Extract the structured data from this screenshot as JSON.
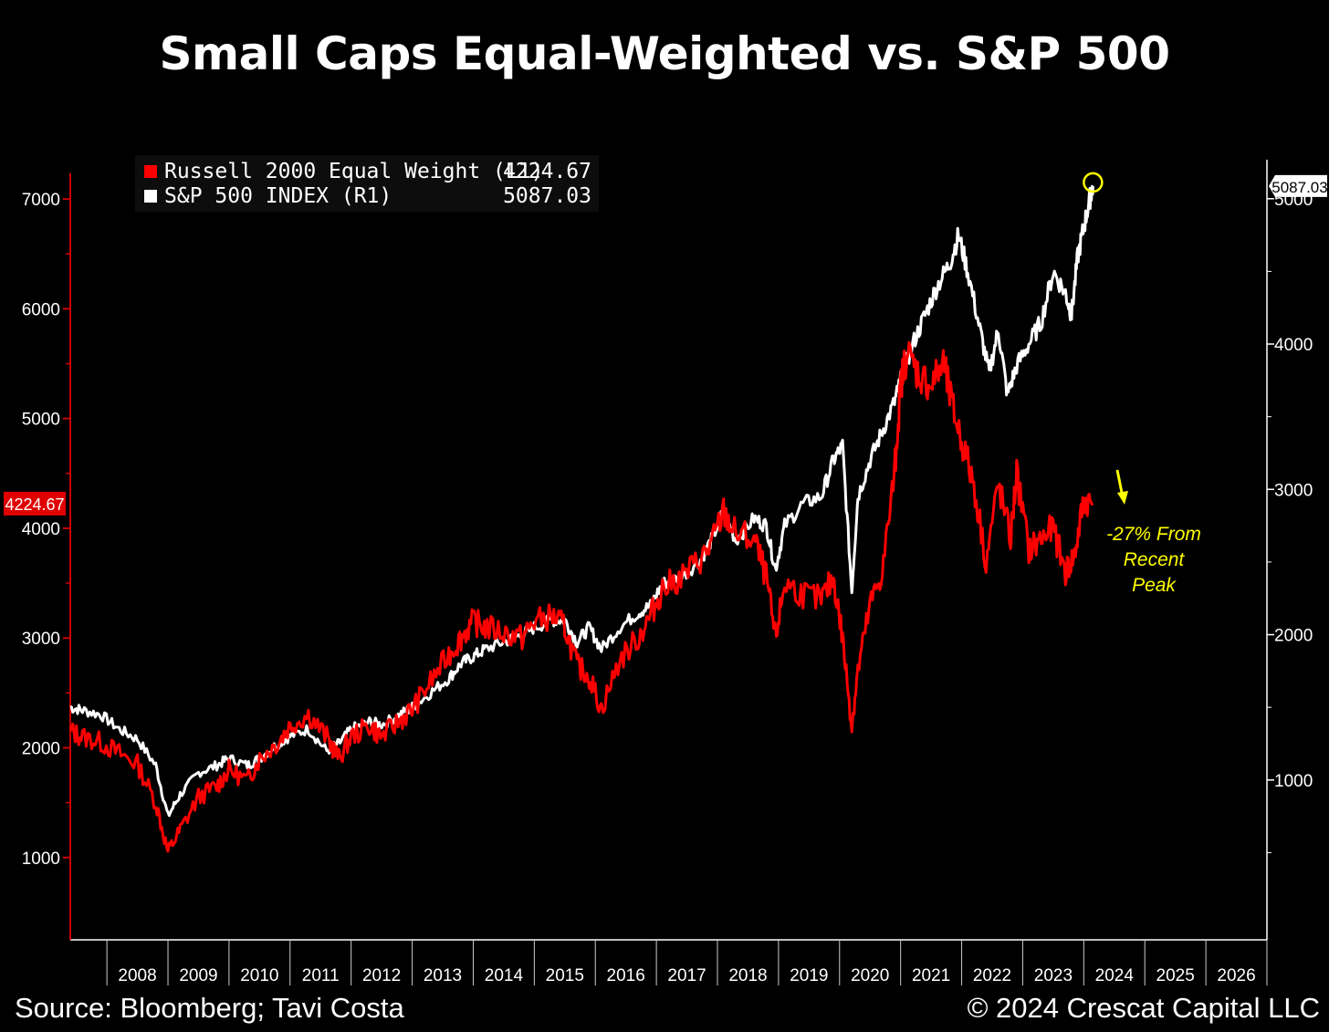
{
  "title": "Small Caps Equal-Weighted vs. S&P 500",
  "footer": {
    "source": "Source: Bloomberg; Tavi Costa",
    "copyright": "© 2024 Crescat Capital LLC"
  },
  "colors": {
    "background": "#000000",
    "russell": "#ff0000",
    "sp500": "#ffffff",
    "annotation": "#ffff00",
    "axis_left": "#cc0000"
  },
  "chart_data": {
    "type": "line",
    "legend": [
      {
        "label": "Russell 2000 Equal Weight  (L1)",
        "value": "4224.67",
        "color": "#ff0000"
      },
      {
        "label": "S&P 500 INDEX  (R1)",
        "value": "5087.03",
        "color": "#ffffff"
      }
    ],
    "left_axis": {
      "ticks": [
        1000,
        2000,
        3000,
        4000,
        5000,
        6000,
        7000
      ],
      "ylim": [
        250,
        7400
      ],
      "last_value_label": "4224.67"
    },
    "right_axis": {
      "ticks": [
        1000,
        2000,
        3000,
        4000,
        5000
      ],
      "ylim": [
        -100,
        5300
      ],
      "last_value_label": "5087.03"
    },
    "x_ticks": [
      "2008",
      "2009",
      "2010",
      "2011",
      "2012",
      "2013",
      "2014",
      "2015",
      "2016",
      "2017",
      "2018",
      "2019",
      "2020",
      "2021",
      "2022",
      "2023",
      "2024",
      "2025",
      "2026"
    ],
    "xlim": [
      2007.4,
      2027.0
    ],
    "series": [
      {
        "name": "Russell 2000 Equal Weight",
        "axis": "left",
        "x": [
          2007.4,
          2007.6,
          2007.9,
          2008.2,
          2008.5,
          2008.8,
          2009.0,
          2009.2,
          2009.5,
          2009.8,
          2010.0,
          2010.3,
          2010.5,
          2010.8,
          2011.0,
          2011.3,
          2011.6,
          2011.8,
          2012.0,
          2012.3,
          2012.5,
          2012.8,
          2013.0,
          2013.3,
          2013.6,
          2013.8,
          2014.0,
          2014.2,
          2014.5,
          2014.8,
          2015.0,
          2015.3,
          2015.5,
          2015.7,
          2015.9,
          2016.1,
          2016.4,
          2016.7,
          2016.9,
          2017.1,
          2017.4,
          2017.7,
          2017.9,
          2018.1,
          2018.3,
          2018.6,
          2018.8,
          2018.95,
          2019.1,
          2019.4,
          2019.7,
          2019.9,
          2020.05,
          2020.2,
          2020.3,
          2020.5,
          2020.7,
          2020.9,
          2021.0,
          2021.1,
          2021.3,
          2021.5,
          2021.7,
          2021.85,
          2022.0,
          2022.2,
          2022.4,
          2022.6,
          2022.8,
          2022.9,
          2023.1,
          2023.3,
          2023.5,
          2023.7,
          2023.85,
          2024.0,
          2024.15
        ],
        "y": [
          2150,
          2100,
          2050,
          1950,
          1850,
          1500,
          1050,
          1250,
          1550,
          1650,
          1800,
          1700,
          1900,
          2050,
          2200,
          2300,
          2100,
          1900,
          2100,
          2200,
          2100,
          2250,
          2350,
          2600,
          2850,
          3000,
          3150,
          3100,
          3050,
          3000,
          3150,
          3200,
          3100,
          2750,
          2650,
          2350,
          2800,
          3000,
          3200,
          3450,
          3550,
          3700,
          3850,
          4150,
          3950,
          3900,
          3550,
          3000,
          3500,
          3400,
          3350,
          3550,
          3000,
          2200,
          2700,
          3300,
          3600,
          4500,
          5300,
          5600,
          5400,
          5300,
          5500,
          5100,
          4800,
          4400,
          3700,
          4400,
          3900,
          4500,
          3800,
          3900,
          4000,
          3600,
          3750,
          4250,
          4224.67
        ]
      },
      {
        "name": "S&P 500 INDEX",
        "axis": "right",
        "x": [
          2007.4,
          2007.6,
          2007.9,
          2008.2,
          2008.5,
          2008.8,
          2009.0,
          2009.2,
          2009.5,
          2009.8,
          2010.0,
          2010.3,
          2010.5,
          2010.8,
          2011.0,
          2011.3,
          2011.6,
          2011.8,
          2012.0,
          2012.3,
          2012.5,
          2012.8,
          2013.0,
          2013.3,
          2013.6,
          2013.8,
          2014.0,
          2014.2,
          2014.5,
          2014.8,
          2015.0,
          2015.3,
          2015.5,
          2015.7,
          2015.9,
          2016.1,
          2016.4,
          2016.7,
          2016.9,
          2017.1,
          2017.4,
          2017.7,
          2017.9,
          2018.1,
          2018.3,
          2018.6,
          2018.8,
          2018.95,
          2019.1,
          2019.4,
          2019.7,
          2019.9,
          2020.05,
          2020.2,
          2020.3,
          2020.5,
          2020.7,
          2020.9,
          2021.0,
          2021.2,
          2021.4,
          2021.6,
          2021.8,
          2021.95,
          2022.1,
          2022.3,
          2022.45,
          2022.6,
          2022.75,
          2022.9,
          2023.1,
          2023.3,
          2023.5,
          2023.7,
          2023.8,
          2023.9,
          2024.0,
          2024.1,
          2024.15
        ],
        "y": [
          1500,
          1480,
          1450,
          1350,
          1280,
          1100,
          750,
          900,
          1050,
          1100,
          1150,
          1100,
          1150,
          1250,
          1300,
          1350,
          1200,
          1250,
          1350,
          1400,
          1380,
          1450,
          1500,
          1600,
          1700,
          1800,
          1850,
          1900,
          1950,
          2000,
          2050,
          2100,
          2100,
          1950,
          2050,
          1900,
          2050,
          2150,
          2200,
          2350,
          2400,
          2500,
          2650,
          2850,
          2650,
          2800,
          2750,
          2450,
          2750,
          2900,
          2950,
          3200,
          3300,
          2300,
          2950,
          3200,
          3400,
          3600,
          3750,
          4000,
          4200,
          4400,
          4550,
          4750,
          4500,
          4100,
          3800,
          4100,
          3650,
          3850,
          4000,
          4150,
          4500,
          4350,
          4200,
          4600,
          4800,
          5000,
          5087.03
        ]
      }
    ],
    "annotations": [
      {
        "text_lines": [
          "-27% From",
          "Recent",
          "Peak"
        ],
        "color": "#ffff00"
      }
    ]
  }
}
